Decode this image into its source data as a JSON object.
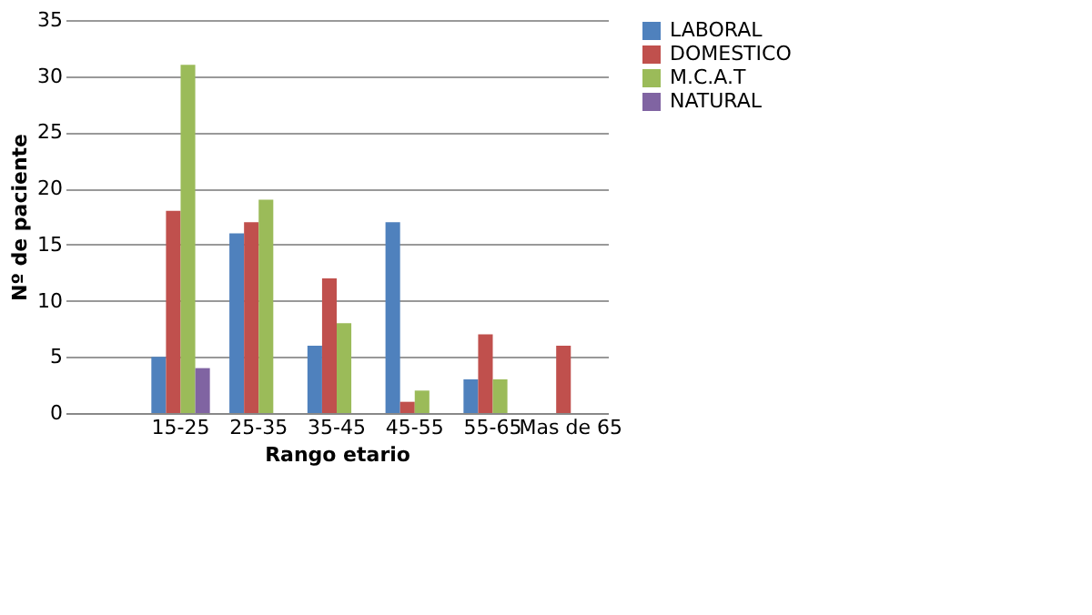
{
  "chart_data": {
    "type": "bar",
    "xlabel": "Rango etario",
    "ylabel": "Nº de paciente",
    "categories": [
      null,
      "15-25",
      "25-35",
      "35-45",
      "45-55",
      "55-65",
      "Mas de 65"
    ],
    "series": [
      {
        "name": "LABORAL",
        "color": "#4f81bd",
        "values": [
          null,
          5,
          16,
          6,
          17,
          3,
          null
        ]
      },
      {
        "name": "DOMESTICO",
        "color": "#c0504d",
        "values": [
          null,
          18,
          17,
          12,
          1,
          7,
          6
        ]
      },
      {
        "name": "M.C.A.T",
        "color": "#9bbb59",
        "values": [
          null,
          31,
          19,
          8,
          2,
          3,
          null
        ]
      },
      {
        "name": "NATURAL",
        "color": "#8064a2",
        "values": [
          null,
          4,
          null,
          null,
          null,
          null,
          null
        ]
      }
    ],
    "ylim": [
      0,
      35
    ],
    "yticks": [
      0,
      5,
      10,
      15,
      20,
      25,
      30,
      35
    ],
    "grid": "y",
    "legend": "right"
  }
}
